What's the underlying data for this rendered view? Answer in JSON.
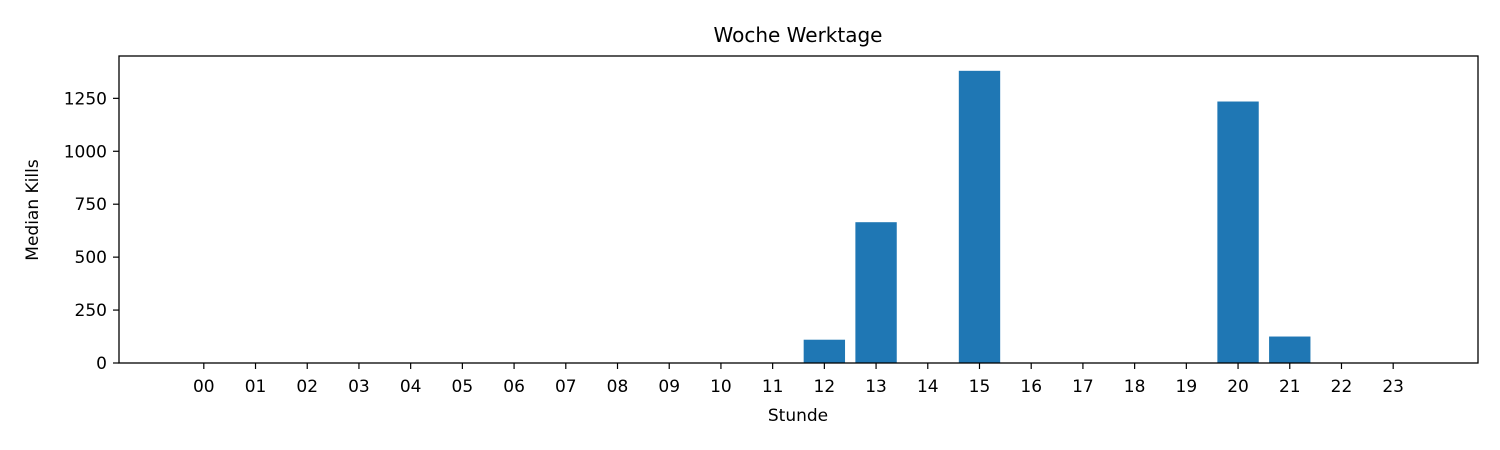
{
  "chart_data": {
    "type": "bar",
    "title": "Woche Werktage",
    "xlabel": "Stunde",
    "ylabel": "Median Kills",
    "categories": [
      "00",
      "01",
      "02",
      "03",
      "04",
      "05",
      "06",
      "07",
      "08",
      "09",
      "10",
      "11",
      "12",
      "13",
      "14",
      "15",
      "16",
      "17",
      "18",
      "19",
      "20",
      "21",
      "22",
      "23"
    ],
    "values": [
      0,
      0,
      0,
      0,
      0,
      0,
      0,
      0,
      0,
      0,
      0,
      0,
      110,
      665,
      0,
      1380,
      0,
      0,
      0,
      0,
      1235,
      125,
      0,
      0
    ],
    "ylim": [
      0,
      1450
    ],
    "yticks": [
      0,
      250,
      500,
      750,
      1000,
      1250
    ],
    "grid": false,
    "bar_color": "#1f77b4"
  }
}
